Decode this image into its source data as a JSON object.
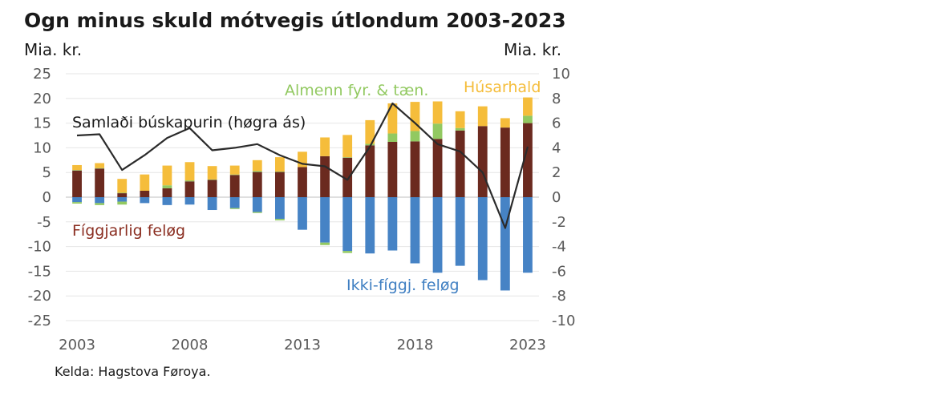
{
  "chart_data": {
    "type": "bar",
    "title": "Ogn minus skuld mótvegis útlondum 2003-2023",
    "left_axis_label": "Mia. kr.",
    "right_axis_label": "Mia. kr.",
    "source": "Kelda: Hagstova Føroya.",
    "x": [
      2003,
      2004,
      2005,
      2006,
      2007,
      2008,
      2009,
      2010,
      2011,
      2012,
      2013,
      2014,
      2015,
      2016,
      2017,
      2018,
      2019,
      2020,
      2021,
      2022,
      2023
    ],
    "x_ticks": [
      "2003",
      "2008",
      "2013",
      "2018",
      "2023"
    ],
    "ylim_left": [
      -25,
      25
    ],
    "y_ticks_left": [
      "25",
      "20",
      "15",
      "10",
      "5",
      "0",
      "-5",
      "-10",
      "-15",
      "-20",
      "-25"
    ],
    "ylim_right": [
      -10,
      10
    ],
    "y_ticks_right": [
      "10",
      "8",
      "6",
      "4",
      "2",
      "0",
      "-2",
      "-4",
      "-6",
      "-8",
      "-10"
    ],
    "grid": true,
    "series": [
      {
        "name": "Fíggjarlig feløg",
        "type": "stacked-bar",
        "axis": "left",
        "color": "#6b2a1f",
        "values": [
          5.4,
          5.8,
          0.8,
          1.3,
          1.8,
          3.2,
          3.5,
          4.5,
          5.1,
          5.1,
          6.1,
          8.3,
          8.0,
          10.5,
          11.2,
          11.3,
          11.8,
          13.5,
          14.4,
          14.1,
          15.0
        ]
      },
      {
        "name": "Almenn fyr. & tæn.",
        "type": "stacked-bar",
        "axis": "left",
        "color": "#92c961",
        "values": [
          0.1,
          0.1,
          0.1,
          0.0,
          0.6,
          0.2,
          0.1,
          0.1,
          0.2,
          0.1,
          0.0,
          0.0,
          0.1,
          0.3,
          1.7,
          2.1,
          3.1,
          0.5,
          0.0,
          0.0,
          1.5
        ]
      },
      {
        "name": "Húsarhald",
        "type": "stacked-bar",
        "axis": "left",
        "color": "#f5bd3b",
        "values": [
          1.0,
          1.0,
          2.8,
          3.3,
          4.0,
          3.7,
          2.7,
          1.8,
          2.2,
          2.9,
          3.1,
          3.8,
          4.5,
          4.8,
          6.1,
          5.9,
          4.5,
          3.4,
          4.0,
          1.9,
          3.7
        ]
      },
      {
        "name": "Ikki-fíggj. feløg",
        "type": "stacked-bar",
        "axis": "left",
        "color": "#4683c5",
        "values": [
          -1.0,
          -1.2,
          -0.9,
          -1.2,
          -1.6,
          -1.5,
          -2.6,
          -2.2,
          -3.0,
          -4.4,
          -6.6,
          -9.2,
          -10.9,
          -11.4,
          -10.8,
          -13.4,
          -15.3,
          -13.9,
          -16.8,
          -18.9,
          -15.3
        ]
      },
      {
        "name": "Almenn fyr. & tæn. (neg)",
        "type": "stacked-bar",
        "axis": "left",
        "color": "#92c961",
        "values": [
          -0.3,
          -0.4,
          -0.6,
          0,
          0,
          0,
          0,
          -0.2,
          -0.2,
          -0.3,
          0,
          -0.5,
          -0.4,
          0,
          0,
          0,
          0,
          0,
          0,
          0,
          0
        ]
      },
      {
        "name": "Samlaði búskapurin (høgra ás)",
        "type": "line",
        "axis": "right",
        "color": "#2b2b2b",
        "values": [
          5.0,
          5.1,
          2.2,
          3.4,
          4.8,
          5.6,
          3.8,
          4.0,
          4.3,
          3.4,
          2.7,
          2.5,
          1.4,
          4.1,
          7.6,
          6.0,
          4.3,
          3.7,
          2.0,
          -2.5,
          4.1
        ]
      }
    ],
    "annotations": [
      {
        "text": "Samlaði búskapurin (høgra ás)",
        "color": "#1a1a1a"
      },
      {
        "text": "Almenn fyr. & tæn.",
        "color": "#92c961"
      },
      {
        "text": "Húsarhald",
        "color": "#f5bd3b"
      },
      {
        "text": "Fíggjarlig feløg",
        "color": "#8b2f22"
      },
      {
        "text": "Ikki-fíggj. feløg",
        "color": "#3f7fc2"
      }
    ]
  }
}
